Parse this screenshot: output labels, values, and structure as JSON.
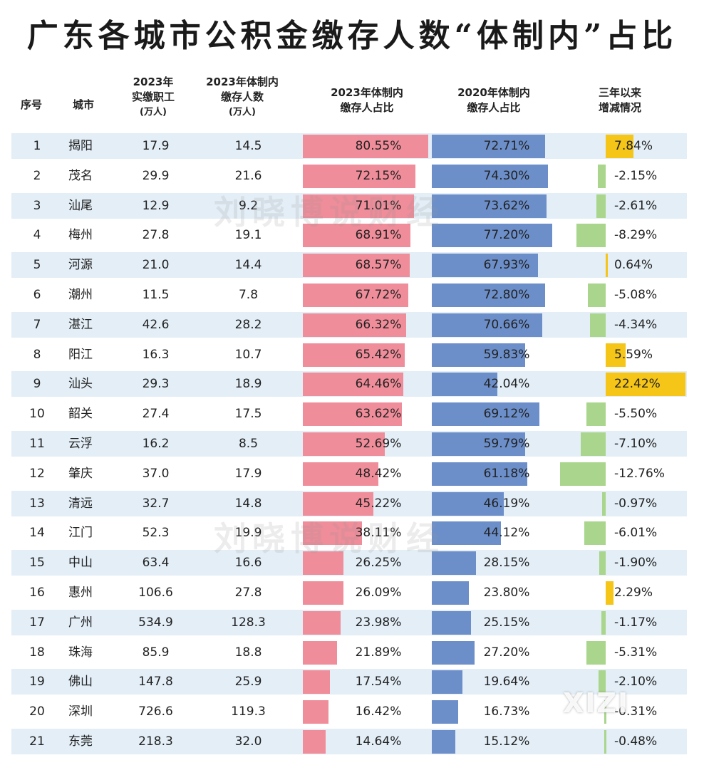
{
  "title": "广东各城市公积金缴存人数“体制内”占比",
  "watermark": "刘晓博说财经",
  "logo": "XIZI",
  "headers": {
    "index": "序号",
    "city": "城市",
    "employees_l1": "2023年",
    "employees_l2": "实缴职工",
    "employees_unit": "(万人)",
    "count_l1": "2023年体制内",
    "count_l2": "缴存人数",
    "count_unit": "(万人)",
    "share2023_l1": "2023年体制内",
    "share2023_l2": "缴存人占比",
    "share2020_l1": "2020年体制内",
    "share2020_l2": "缴存人占比",
    "change_l1": "三年以来",
    "change_l2": "增减情况"
  },
  "chart_data": {
    "type": "table",
    "title": "广东各城市公积金缴存人数“体制内”占比",
    "columns": [
      "序号",
      "城市",
      "2023年实缴职工(万人)",
      "2023年体制内缴存人数(万人)",
      "2023年体制内缴存人占比",
      "2020年体制内缴存人占比",
      "三年以来增减情况"
    ],
    "rows": [
      {
        "idx": "1",
        "city": "揭阳",
        "employees": "17.9",
        "count": "14.5",
        "share2023": 80.55,
        "share2023_label": "80.55%",
        "share2020": 72.71,
        "share2020_label": "72.71%",
        "change": 7.84,
        "change_label": "7.84%"
      },
      {
        "idx": "2",
        "city": "茂名",
        "employees": "29.9",
        "count": "21.6",
        "share2023": 72.15,
        "share2023_label": "72.15%",
        "share2020": 74.3,
        "share2020_label": "74.30%",
        "change": -2.15,
        "change_label": "-2.15%"
      },
      {
        "idx": "3",
        "city": "汕尾",
        "employees": "12.9",
        "count": "9.2",
        "share2023": 71.01,
        "share2023_label": "71.01%",
        "share2020": 73.62,
        "share2020_label": "73.62%",
        "change": -2.61,
        "change_label": "-2.61%"
      },
      {
        "idx": "4",
        "city": "梅州",
        "employees": "27.8",
        "count": "19.1",
        "share2023": 68.91,
        "share2023_label": "68.91%",
        "share2020": 77.2,
        "share2020_label": "77.20%",
        "change": -8.29,
        "change_label": "-8.29%"
      },
      {
        "idx": "5",
        "city": "河源",
        "employees": "21.0",
        "count": "14.4",
        "share2023": 68.57,
        "share2023_label": "68.57%",
        "share2020": 67.93,
        "share2020_label": "67.93%",
        "change": 0.64,
        "change_label": "0.64%"
      },
      {
        "idx": "6",
        "city": "潮州",
        "employees": "11.5",
        "count": "7.8",
        "share2023": 67.72,
        "share2023_label": "67.72%",
        "share2020": 72.8,
        "share2020_label": "72.80%",
        "change": -5.08,
        "change_label": "-5.08%"
      },
      {
        "idx": "7",
        "city": "湛江",
        "employees": "42.6",
        "count": "28.2",
        "share2023": 66.32,
        "share2023_label": "66.32%",
        "share2020": 70.66,
        "share2020_label": "70.66%",
        "change": -4.34,
        "change_label": "-4.34%"
      },
      {
        "idx": "8",
        "city": "阳江",
        "employees": "16.3",
        "count": "10.7",
        "share2023": 65.42,
        "share2023_label": "65.42%",
        "share2020": 59.83,
        "share2020_label": "59.83%",
        "change": 5.59,
        "change_label": "5.59%"
      },
      {
        "idx": "9",
        "city": "汕头",
        "employees": "29.3",
        "count": "18.9",
        "share2023": 64.46,
        "share2023_label": "64.46%",
        "share2020": 42.04,
        "share2020_label": "42.04%",
        "change": 22.42,
        "change_label": "22.42%"
      },
      {
        "idx": "10",
        "city": "韶关",
        "employees": "27.4",
        "count": "17.5",
        "share2023": 63.62,
        "share2023_label": "63.62%",
        "share2020": 69.12,
        "share2020_label": "69.12%",
        "change": -5.5,
        "change_label": "-5.50%"
      },
      {
        "idx": "11",
        "city": "云浮",
        "employees": "16.2",
        "count": "8.5",
        "share2023": 52.69,
        "share2023_label": "52.69%",
        "share2020": 59.79,
        "share2020_label": "59.79%",
        "change": -7.1,
        "change_label": "-7.10%"
      },
      {
        "idx": "12",
        "city": "肇庆",
        "employees": "37.0",
        "count": "17.9",
        "share2023": 48.42,
        "share2023_label": "48.42%",
        "share2020": 61.18,
        "share2020_label": "61.18%",
        "change": -12.76,
        "change_label": "-12.76%"
      },
      {
        "idx": "13",
        "city": "清远",
        "employees": "32.7",
        "count": "14.8",
        "share2023": 45.22,
        "share2023_label": "45.22%",
        "share2020": 46.19,
        "share2020_label": "46.19%",
        "change": -0.97,
        "change_label": "-0.97%"
      },
      {
        "idx": "14",
        "city": "江门",
        "employees": "52.3",
        "count": "19.9",
        "share2023": 38.11,
        "share2023_label": "38.11%",
        "share2020": 44.12,
        "share2020_label": "44.12%",
        "change": -6.01,
        "change_label": "-6.01%"
      },
      {
        "idx": "15",
        "city": "中山",
        "employees": "63.4",
        "count": "16.6",
        "share2023": 26.25,
        "share2023_label": "26.25%",
        "share2020": 28.15,
        "share2020_label": "28.15%",
        "change": -1.9,
        "change_label": "-1.90%"
      },
      {
        "idx": "16",
        "city": "惠州",
        "employees": "106.6",
        "count": "27.8",
        "share2023": 26.09,
        "share2023_label": "26.09%",
        "share2020": 23.8,
        "share2020_label": "23.80%",
        "change": 2.29,
        "change_label": "2.29%"
      },
      {
        "idx": "17",
        "city": "广州",
        "employees": "534.9",
        "count": "128.3",
        "share2023": 23.98,
        "share2023_label": "23.98%",
        "share2020": 25.15,
        "share2020_label": "25.15%",
        "change": -1.17,
        "change_label": "-1.17%"
      },
      {
        "idx": "18",
        "city": "珠海",
        "employees": "85.9",
        "count": "18.8",
        "share2023": 21.89,
        "share2023_label": "21.89%",
        "share2020": 27.2,
        "share2020_label": "27.20%",
        "change": -5.31,
        "change_label": "-5.31%"
      },
      {
        "idx": "19",
        "city": "佛山",
        "employees": "147.8",
        "count": "25.9",
        "share2023": 17.54,
        "share2023_label": "17.54%",
        "share2020": 19.64,
        "share2020_label": "19.64%",
        "change": -2.1,
        "change_label": "-2.10%"
      },
      {
        "idx": "20",
        "city": "深圳",
        "employees": "726.6",
        "count": "119.3",
        "share2023": 16.42,
        "share2023_label": "16.42%",
        "share2020": 16.73,
        "share2020_label": "16.73%",
        "change": -0.31,
        "change_label": "-0.31%"
      },
      {
        "idx": "21",
        "city": "东莞",
        "employees": "218.3",
        "count": "32.0",
        "share2023": 14.64,
        "share2023_label": "14.64%",
        "share2020": 15.12,
        "share2020_label": "15.12%",
        "change": -0.48,
        "change_label": "-0.48%"
      }
    ],
    "colors": {
      "share2023_bar": "#f08d9a",
      "share2020_bar": "#6c8fca",
      "change_positive": "#f5c518",
      "change_negative": "#a9d58c",
      "row_stripe": "#e3eef7"
    }
  }
}
